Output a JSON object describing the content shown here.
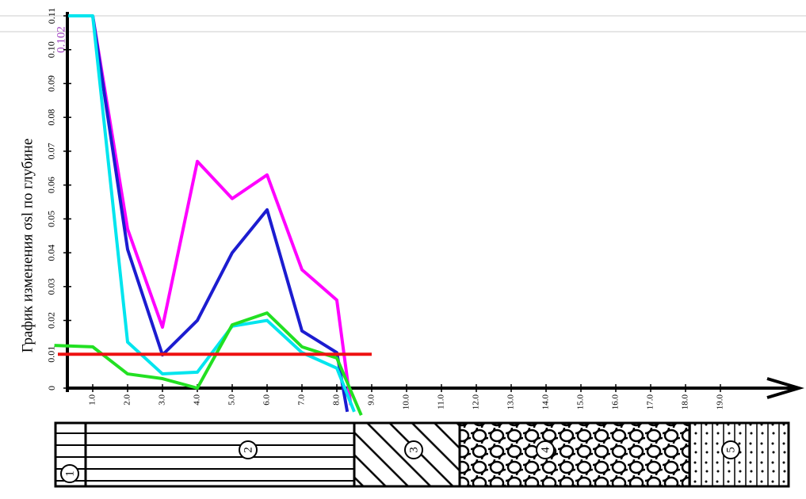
{
  "chart_data": {
    "type": "line",
    "title": "График изменения σsl по глубине",
    "annotation": "0.102",
    "xlim": [
      0,
      21
    ],
    "ylim": [
      0,
      0.11
    ],
    "xticks": [
      {
        "value": 1,
        "label": "1.0"
      },
      {
        "value": 2,
        "label": "2.0"
      },
      {
        "value": 3,
        "label": "3.0"
      },
      {
        "value": 4,
        "label": "4.0"
      },
      {
        "value": 5,
        "label": "5.0"
      },
      {
        "value": 6,
        "label": "6.0"
      },
      {
        "value": 7,
        "label": "7.0"
      },
      {
        "value": 8,
        "label": "8.0"
      },
      {
        "value": 9,
        "label": "9.0"
      },
      {
        "value": 10,
        "label": "10.0"
      },
      {
        "value": 11,
        "label": "11.0"
      },
      {
        "value": 12,
        "label": "12.0"
      },
      {
        "value": 13,
        "label": "13.0"
      },
      {
        "value": 14,
        "label": "14.0"
      },
      {
        "value": 15,
        "label": "15.0"
      },
      {
        "value": 16,
        "label": "16.0"
      },
      {
        "value": 17,
        "label": "17.0"
      },
      {
        "value": 18,
        "label": "18.0"
      },
      {
        "value": 19,
        "label": "19.0"
      }
    ],
    "yticks": [
      0,
      0.01,
      0.02,
      0.03,
      0.04,
      0.05,
      0.06,
      0.07,
      0.08,
      0.09,
      {
        "value": 0.1,
        "label": "0.10"
      },
      0.11
    ],
    "series": [
      {
        "color": "#ff00ff",
        "x": [
          1,
          2,
          3,
          4,
          5,
          6,
          7,
          8,
          8.4
        ],
        "values": [
          0.11,
          0.047,
          0.018,
          0.067,
          0.056,
          0.063,
          0.035,
          0.026,
          -0.005
        ]
      },
      {
        "color": "#1c1cd0",
        "x": [
          1,
          2,
          3,
          4,
          5,
          6,
          7,
          8,
          8.3
        ],
        "values": [
          0.11,
          0.041,
          0.0098,
          0.02,
          0.04,
          0.0527,
          0.0169,
          0.0105,
          -0.007
        ]
      },
      {
        "color": "#00e5ee",
        "x": [
          0.3,
          1,
          2,
          3,
          4,
          5,
          6,
          7,
          8,
          8.5
        ],
        "values": [
          0.11,
          0.11,
          0.0136,
          0.0042,
          0.0047,
          0.0183,
          0.02,
          0.0105,
          0.0059,
          -0.007
        ]
      },
      {
        "color": "#22e022",
        "x": [
          -0.1,
          1,
          2,
          3,
          4,
          5,
          6,
          7,
          8,
          8.7
        ],
        "values": [
          0.0126,
          0.0122,
          0.0042,
          0.0028,
          0,
          0.0187,
          0.0222,
          0.0122,
          0.0089,
          -0.008
        ]
      },
      {
        "color": "#ee1111",
        "x": [
          0,
          9
        ],
        "values": [
          0.01,
          0.01
        ]
      }
    ]
  },
  "layers": [
    "1",
    "2",
    "3",
    "4",
    "5"
  ]
}
